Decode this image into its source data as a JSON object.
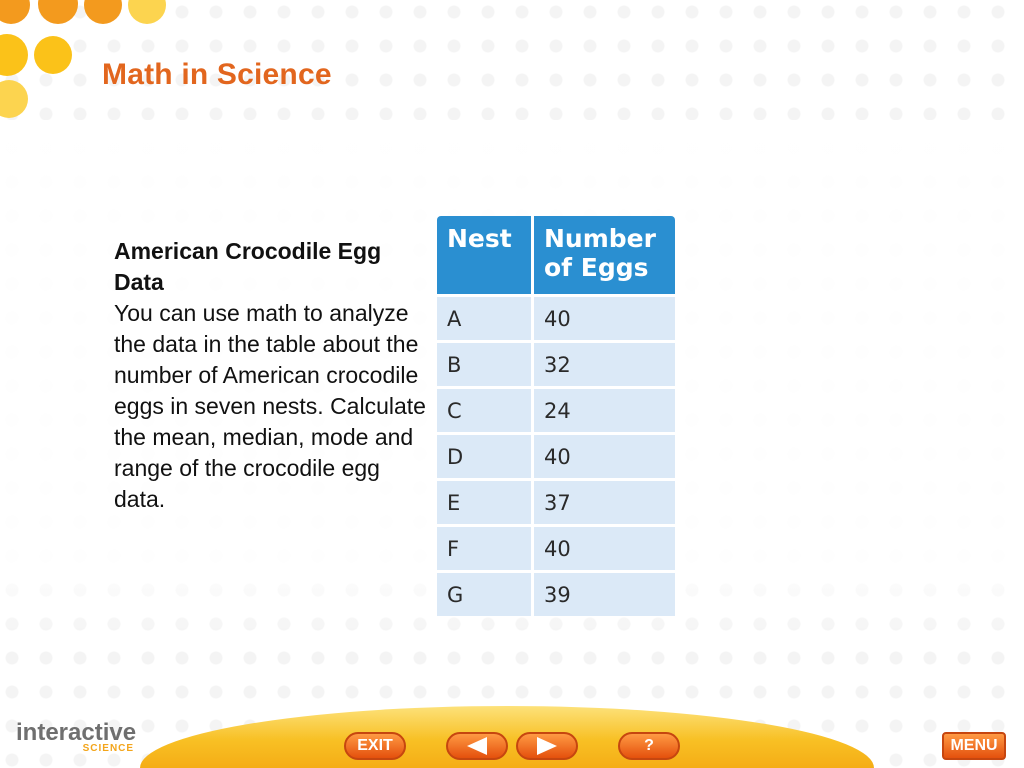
{
  "slide": {
    "title": "Math in Science",
    "intro_heading": "American Crocodile Egg Data",
    "intro_body": "You can use math to analyze the data in the table about the number of American crocodile eggs in seven nests. Calculate the mean, median, mode and range of the crocodile egg data."
  },
  "table": {
    "headers": [
      "Nest",
      "Number of Eggs"
    ],
    "rows": [
      {
        "nest": "A",
        "eggs": "40"
      },
      {
        "nest": "B",
        "eggs": "32"
      },
      {
        "nest": "C",
        "eggs": "24"
      },
      {
        "nest": "D",
        "eggs": "40"
      },
      {
        "nest": "E",
        "eggs": "37"
      },
      {
        "nest": "F",
        "eggs": "40"
      },
      {
        "nest": "G",
        "eggs": "39"
      }
    ]
  },
  "footer": {
    "logo_main": "interactive",
    "logo_sub": "SCIENCE",
    "exit_label": "EXIT",
    "help_label": "?",
    "menu_label": "MENU"
  },
  "icons": {
    "back": "arrow-left-icon",
    "next": "arrow-right-icon"
  },
  "colors": {
    "title": "#e2661e",
    "table_header": "#2a8fd1",
    "table_cell": "#dbe9f7",
    "button": "#e4500d",
    "accent_dots": "#f7b71d"
  }
}
